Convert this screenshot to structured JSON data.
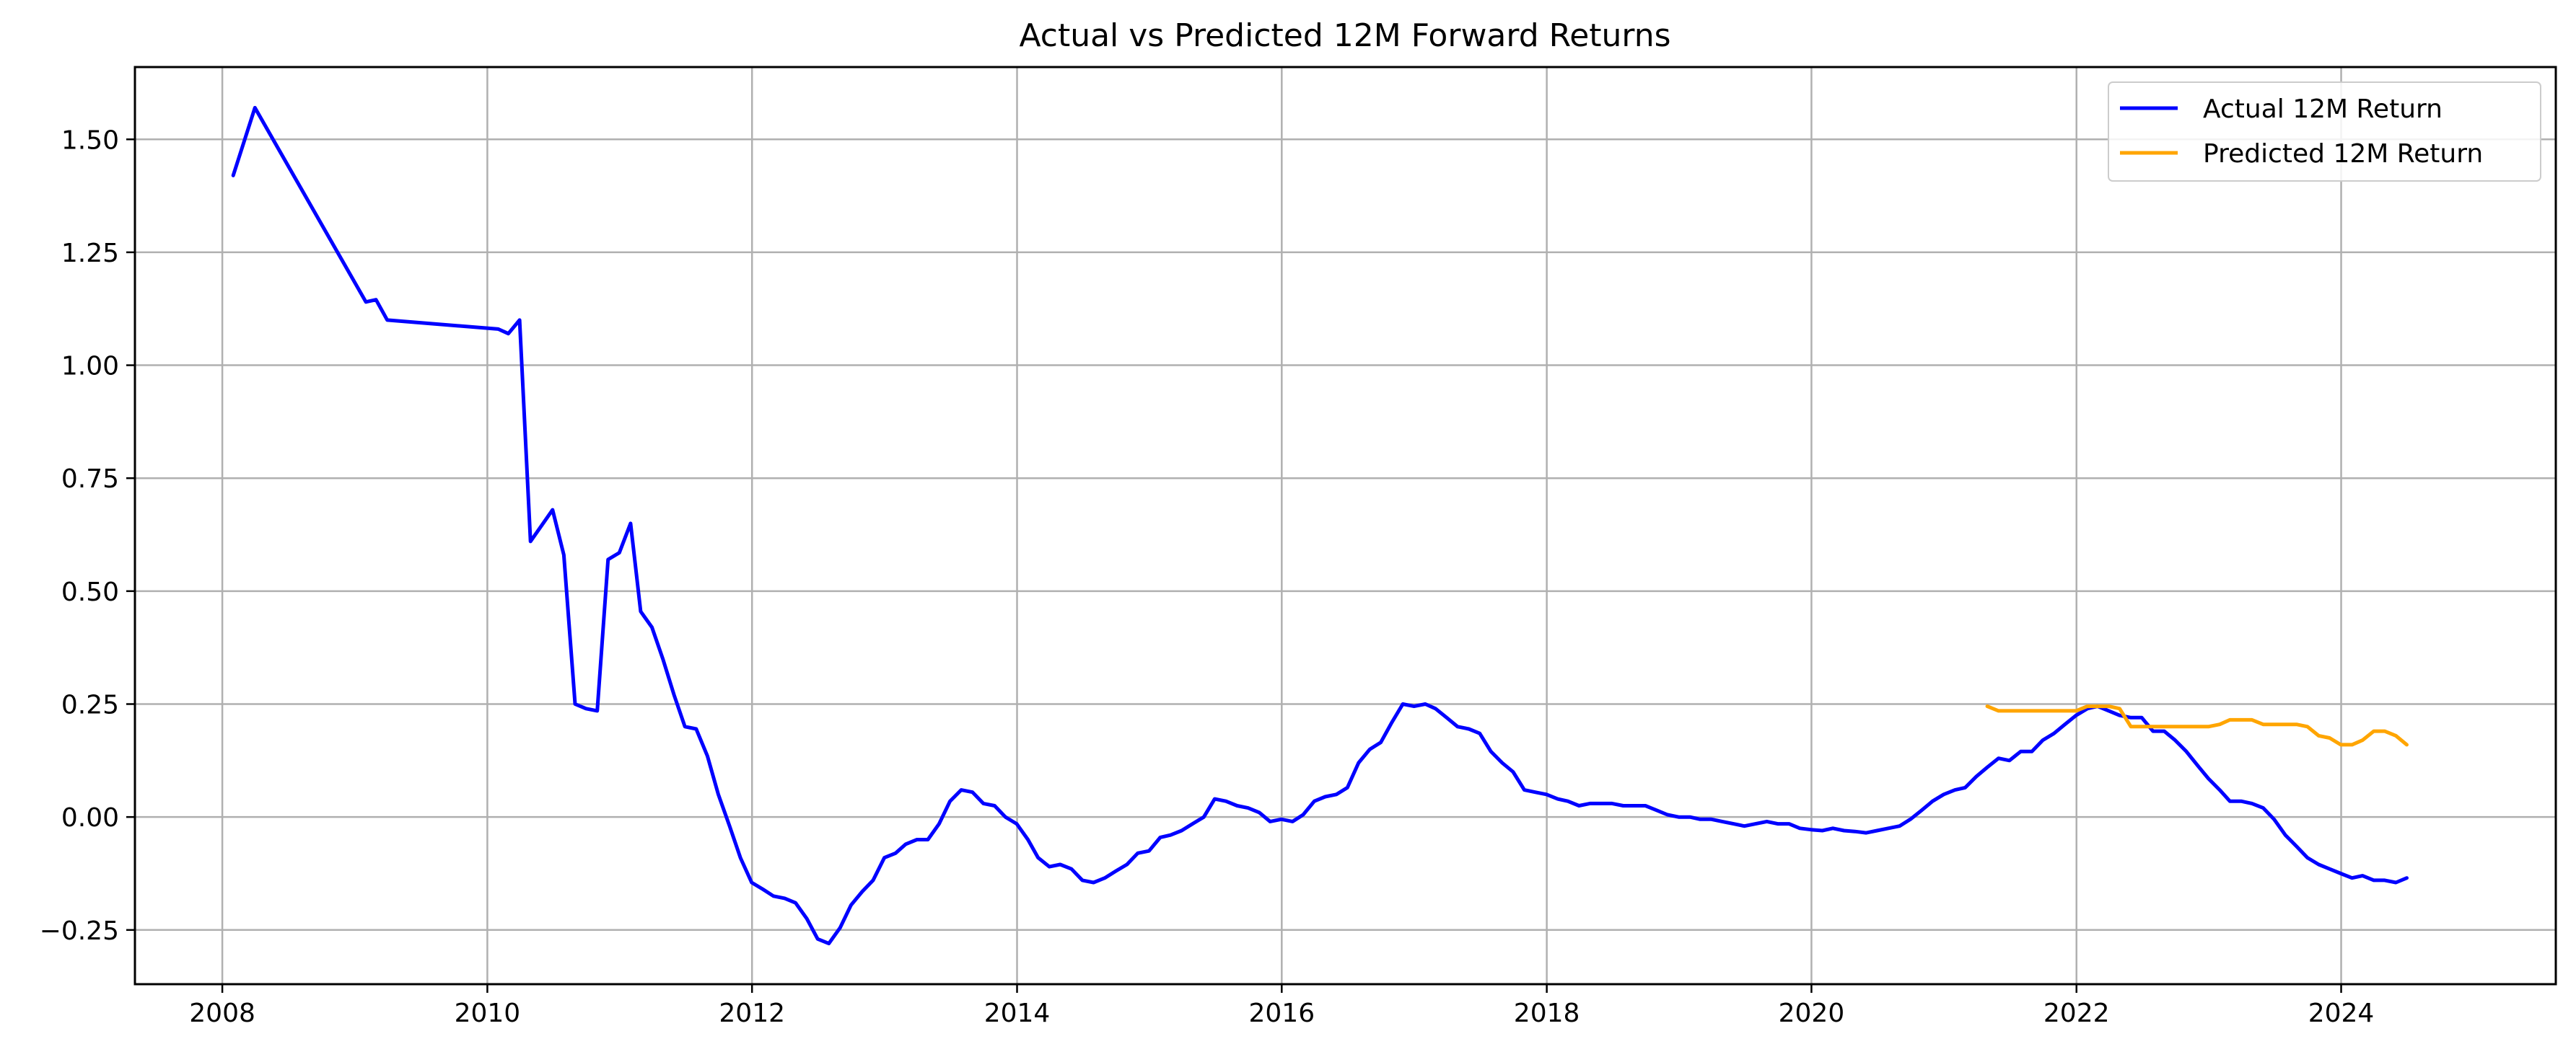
{
  "chart_data": {
    "type": "line",
    "title": "Actual vs Predicted 12M Forward Returns",
    "xlabel": "",
    "ylabel": "",
    "xlim": [
      "2007-05-05",
      "2025-08-15"
    ],
    "ylim": [
      -0.37,
      1.66
    ],
    "x_ticks": [
      "2008",
      "2010",
      "2012",
      "2014",
      "2016",
      "2018",
      "2020",
      "2022",
      "2024"
    ],
    "y_ticks": [
      -0.25,
      0.0,
      0.25,
      0.5,
      0.75,
      1.0,
      1.25,
      1.5
    ],
    "y_tick_labels": [
      "−0.25",
      "0.00",
      "0.25",
      "0.50",
      "0.75",
      "1.00",
      "1.25",
      "1.50"
    ],
    "grid": true,
    "legend_position": "top-right",
    "colors": {
      "actual": "#0000ff",
      "predicted": "#ffa500",
      "grid": "#b0b0b0"
    },
    "series": [
      {
        "name": "Actual 12M Return",
        "color": "#0000ff",
        "points": [
          [
            "2008-01-31",
            1.42
          ],
          [
            "2008-03-31",
            1.57
          ],
          [
            "2009-01-31",
            1.14
          ],
          [
            "2009-02-28",
            1.145
          ],
          [
            "2009-03-31",
            1.1
          ],
          [
            "2010-01-31",
            1.08
          ],
          [
            "2010-02-28",
            1.07
          ],
          [
            "2010-03-31",
            1.1
          ],
          [
            "2010-04-30",
            0.61
          ],
          [
            "2010-06-30",
            0.68
          ],
          [
            "2010-07-31",
            0.58
          ],
          [
            "2010-08-31",
            0.25
          ],
          [
            "2010-09-30",
            0.24
          ],
          [
            "2010-10-31",
            0.235
          ],
          [
            "2010-11-30",
            0.57
          ],
          [
            "2010-12-31",
            0.585
          ],
          [
            "2011-01-31",
            0.65
          ],
          [
            "2011-02-28",
            0.455
          ],
          [
            "2011-03-31",
            0.42
          ],
          [
            "2011-04-30",
            0.35
          ],
          [
            "2011-05-31",
            0.27
          ],
          [
            "2011-06-30",
            0.2
          ],
          [
            "2011-07-31",
            0.195
          ],
          [
            "2011-08-31",
            0.135
          ],
          [
            "2011-09-30",
            0.05
          ],
          [
            "2011-10-31",
            -0.02
          ],
          [
            "2011-11-30",
            -0.09
          ],
          [
            "2011-12-31",
            -0.145
          ],
          [
            "2012-01-31",
            -0.16
          ],
          [
            "2012-02-29",
            -0.175
          ],
          [
            "2012-03-31",
            -0.18
          ],
          [
            "2012-04-30",
            -0.19
          ],
          [
            "2012-05-31",
            -0.225
          ],
          [
            "2012-06-30",
            -0.27
          ],
          [
            "2012-07-31",
            -0.28
          ],
          [
            "2012-08-31",
            -0.245
          ],
          [
            "2012-09-30",
            -0.195
          ],
          [
            "2012-10-31",
            -0.165
          ],
          [
            "2012-11-30",
            -0.14
          ],
          [
            "2012-12-31",
            -0.09
          ],
          [
            "2013-01-31",
            -0.08
          ],
          [
            "2013-02-28",
            -0.06
          ],
          [
            "2013-03-31",
            -0.05
          ],
          [
            "2013-04-30",
            -0.05
          ],
          [
            "2013-05-31",
            -0.015
          ],
          [
            "2013-06-30",
            0.035
          ],
          [
            "2013-07-31",
            0.06
          ],
          [
            "2013-08-31",
            0.055
          ],
          [
            "2013-09-30",
            0.03
          ],
          [
            "2013-10-31",
            0.025
          ],
          [
            "2013-11-30",
            0.0
          ],
          [
            "2013-12-31",
            -0.015
          ],
          [
            "2014-01-31",
            -0.05
          ],
          [
            "2014-02-28",
            -0.09
          ],
          [
            "2014-03-31",
            -0.11
          ],
          [
            "2014-04-30",
            -0.105
          ],
          [
            "2014-05-31",
            -0.115
          ],
          [
            "2014-06-30",
            -0.14
          ],
          [
            "2014-07-31",
            -0.145
          ],
          [
            "2014-08-31",
            -0.135
          ],
          [
            "2014-09-30",
            -0.12
          ],
          [
            "2014-10-31",
            -0.105
          ],
          [
            "2014-11-30",
            -0.08
          ],
          [
            "2014-12-31",
            -0.075
          ],
          [
            "2015-01-31",
            -0.045
          ],
          [
            "2015-02-28",
            -0.04
          ],
          [
            "2015-03-31",
            -0.03
          ],
          [
            "2015-04-30",
            -0.015
          ],
          [
            "2015-05-31",
            0.0
          ],
          [
            "2015-06-30",
            0.04
          ],
          [
            "2015-07-31",
            0.035
          ],
          [
            "2015-08-31",
            0.025
          ],
          [
            "2015-09-30",
            0.02
          ],
          [
            "2015-10-31",
            0.01
          ],
          [
            "2015-11-30",
            -0.01
          ],
          [
            "2015-12-31",
            -0.005
          ],
          [
            "2016-01-31",
            -0.01
          ],
          [
            "2016-02-29",
            0.005
          ],
          [
            "2016-03-31",
            0.035
          ],
          [
            "2016-04-30",
            0.045
          ],
          [
            "2016-05-31",
            0.05
          ],
          [
            "2016-06-30",
            0.065
          ],
          [
            "2016-07-31",
            0.12
          ],
          [
            "2016-08-31",
            0.15
          ],
          [
            "2016-09-30",
            0.165
          ],
          [
            "2016-10-31",
            0.21
          ],
          [
            "2016-11-30",
            0.25
          ],
          [
            "2016-12-31",
            0.245
          ],
          [
            "2017-01-31",
            0.25
          ],
          [
            "2017-02-28",
            0.24
          ],
          [
            "2017-03-31",
            0.22
          ],
          [
            "2017-04-30",
            0.2
          ],
          [
            "2017-05-31",
            0.195
          ],
          [
            "2017-06-30",
            0.185
          ],
          [
            "2017-07-31",
            0.145
          ],
          [
            "2017-08-31",
            0.12
          ],
          [
            "2017-09-30",
            0.1
          ],
          [
            "2017-10-31",
            0.06
          ],
          [
            "2017-11-30",
            0.055
          ],
          [
            "2017-12-31",
            0.05
          ],
          [
            "2018-01-31",
            0.04
          ],
          [
            "2018-02-28",
            0.035
          ],
          [
            "2018-03-31",
            0.025
          ],
          [
            "2018-04-30",
            0.03
          ],
          [
            "2018-05-31",
            0.03
          ],
          [
            "2018-06-30",
            0.03
          ],
          [
            "2018-07-31",
            0.025
          ],
          [
            "2018-08-31",
            0.025
          ],
          [
            "2018-09-30",
            0.025
          ],
          [
            "2018-10-31",
            0.015
          ],
          [
            "2018-11-30",
            0.005
          ],
          [
            "2018-12-31",
            0.0
          ],
          [
            "2019-01-31",
            0.0
          ],
          [
            "2019-02-28",
            -0.005
          ],
          [
            "2019-03-31",
            -0.005
          ],
          [
            "2019-04-30",
            -0.01
          ],
          [
            "2019-05-31",
            -0.015
          ],
          [
            "2019-06-30",
            -0.02
          ],
          [
            "2019-07-31",
            -0.015
          ],
          [
            "2019-08-31",
            -0.01
          ],
          [
            "2019-09-30",
            -0.015
          ],
          [
            "2019-10-31",
            -0.015
          ],
          [
            "2019-11-30",
            -0.025
          ],
          [
            "2019-12-31",
            -0.028
          ],
          [
            "2020-01-31",
            -0.03
          ],
          [
            "2020-02-29",
            -0.025
          ],
          [
            "2020-03-31",
            -0.03
          ],
          [
            "2020-04-30",
            -0.032
          ],
          [
            "2020-05-31",
            -0.035
          ],
          [
            "2020-06-30",
            -0.03
          ],
          [
            "2020-07-31",
            -0.025
          ],
          [
            "2020-08-31",
            -0.02
          ],
          [
            "2020-09-30",
            -0.005
          ],
          [
            "2020-10-31",
            0.015
          ],
          [
            "2020-11-30",
            0.035
          ],
          [
            "2020-12-31",
            0.05
          ],
          [
            "2021-01-31",
            0.06
          ],
          [
            "2021-02-28",
            0.065
          ],
          [
            "2021-03-31",
            0.09
          ],
          [
            "2021-04-30",
            0.11
          ],
          [
            "2021-05-31",
            0.13
          ],
          [
            "2021-06-30",
            0.125
          ],
          [
            "2021-07-31",
            0.145
          ],
          [
            "2021-08-31",
            0.145
          ],
          [
            "2021-09-30",
            0.17
          ],
          [
            "2021-10-31",
            0.185
          ],
          [
            "2021-11-30",
            0.205
          ],
          [
            "2021-12-31",
            0.225
          ],
          [
            "2022-01-31",
            0.24
          ],
          [
            "2022-02-28",
            0.245
          ],
          [
            "2022-03-31",
            0.235
          ],
          [
            "2022-04-30",
            0.225
          ],
          [
            "2022-05-31",
            0.22
          ],
          [
            "2022-06-30",
            0.22
          ],
          [
            "2022-07-31",
            0.19
          ],
          [
            "2022-08-31",
            0.19
          ],
          [
            "2022-09-30",
            0.17
          ],
          [
            "2022-10-31",
            0.145
          ],
          [
            "2022-11-30",
            0.115
          ],
          [
            "2022-12-31",
            0.085
          ],
          [
            "2023-01-31",
            0.06
          ],
          [
            "2023-02-28",
            0.035
          ],
          [
            "2023-03-31",
            0.035
          ],
          [
            "2023-04-30",
            0.03
          ],
          [
            "2023-05-31",
            0.02
          ],
          [
            "2023-06-30",
            -0.005
          ],
          [
            "2023-07-31",
            -0.04
          ],
          [
            "2023-08-31",
            -0.065
          ],
          [
            "2023-09-30",
            -0.09
          ],
          [
            "2023-10-31",
            -0.105
          ],
          [
            "2023-11-30",
            -0.115
          ],
          [
            "2023-12-31",
            -0.125
          ],
          [
            "2024-01-31",
            -0.135
          ],
          [
            "2024-02-29",
            -0.13
          ],
          [
            "2024-03-31",
            -0.14
          ],
          [
            "2024-04-30",
            -0.14
          ],
          [
            "2024-05-31",
            -0.145
          ],
          [
            "2024-06-30",
            -0.135
          ]
        ]
      },
      {
        "name": "Predicted 12M Return",
        "color": "#ffa500",
        "points": [
          [
            "2021-04-30",
            0.245
          ],
          [
            "2021-05-31",
            0.235
          ],
          [
            "2021-06-30",
            0.235
          ],
          [
            "2021-07-31",
            0.235
          ],
          [
            "2021-08-31",
            0.235
          ],
          [
            "2021-09-30",
            0.235
          ],
          [
            "2021-10-31",
            0.235
          ],
          [
            "2021-11-30",
            0.235
          ],
          [
            "2021-12-31",
            0.235
          ],
          [
            "2022-01-31",
            0.245
          ],
          [
            "2022-02-28",
            0.245
          ],
          [
            "2022-03-31",
            0.245
          ],
          [
            "2022-04-30",
            0.24
          ],
          [
            "2022-05-31",
            0.2
          ],
          [
            "2022-06-30",
            0.2
          ],
          [
            "2022-07-31",
            0.2
          ],
          [
            "2022-08-31",
            0.2
          ],
          [
            "2022-09-30",
            0.2
          ],
          [
            "2022-10-31",
            0.2
          ],
          [
            "2022-11-30",
            0.2
          ],
          [
            "2022-12-31",
            0.2
          ],
          [
            "2023-01-31",
            0.205
          ],
          [
            "2023-02-28",
            0.215
          ],
          [
            "2023-03-31",
            0.215
          ],
          [
            "2023-04-30",
            0.215
          ],
          [
            "2023-05-31",
            0.205
          ],
          [
            "2023-06-30",
            0.205
          ],
          [
            "2023-07-31",
            0.205
          ],
          [
            "2023-08-31",
            0.205
          ],
          [
            "2023-09-30",
            0.2
          ],
          [
            "2023-10-31",
            0.18
          ],
          [
            "2023-11-30",
            0.175
          ],
          [
            "2023-12-31",
            0.16
          ],
          [
            "2024-01-31",
            0.16
          ],
          [
            "2024-02-29",
            0.17
          ],
          [
            "2024-03-31",
            0.19
          ],
          [
            "2024-04-30",
            0.19
          ],
          [
            "2024-05-31",
            0.18
          ],
          [
            "2024-06-30",
            0.16
          ]
        ]
      }
    ]
  }
}
